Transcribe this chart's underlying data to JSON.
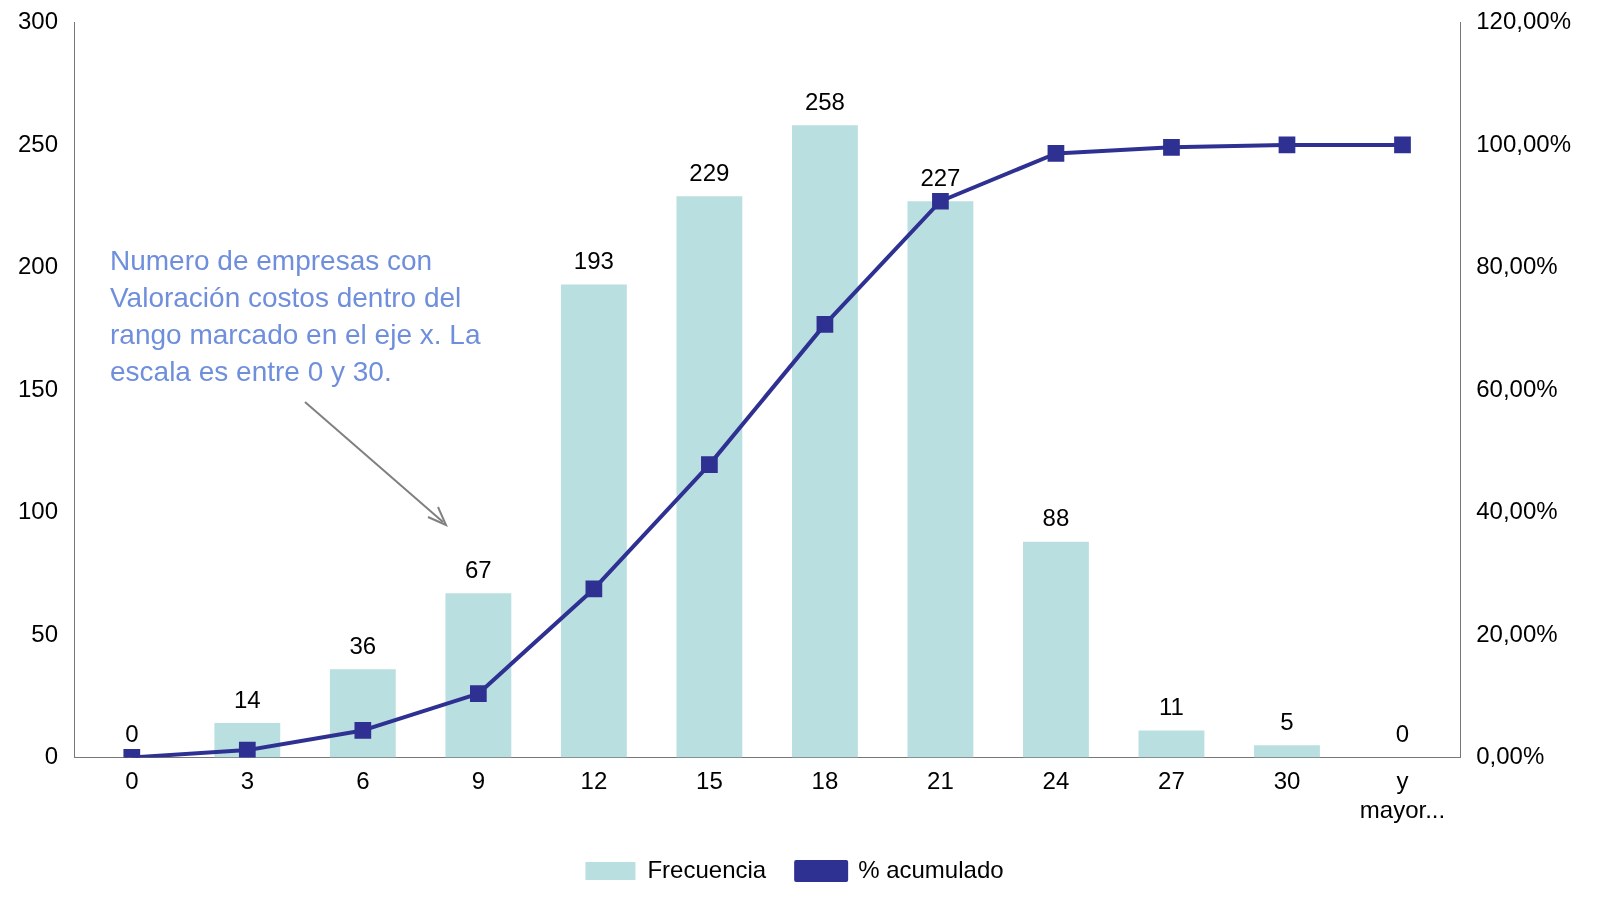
{
  "chart_data": {
    "type": "bar",
    "categories": [
      "0",
      "3",
      "6",
      "9",
      "12",
      "15",
      "18",
      "21",
      "24",
      "27",
      "30",
      "y mayor..."
    ],
    "series": [
      {
        "name": "Frecuencia",
        "color": "#b9dfe0",
        "values": [
          0,
          14,
          36,
          67,
          193,
          229,
          258,
          227,
          88,
          11,
          5,
          0
        ],
        "value_labels": [
          "0",
          "14",
          "36",
          "67",
          "193",
          "229",
          "258",
          "227",
          "88",
          "11",
          "5",
          "0"
        ]
      },
      {
        "name": "% acumulado",
        "type": "line",
        "axis": "y2",
        "color": "#2e3192",
        "marker": "square",
        "line_style": "solid",
        "values": [
          0,
          1.2,
          4.4,
          10.4,
          27.5,
          47.8,
          70.7,
          90.8,
          98.6,
          99.6,
          100,
          100
        ]
      }
    ],
    "ylim": [
      0,
      300
    ],
    "yticks": [
      0,
      50,
      100,
      150,
      200,
      250,
      300
    ],
    "y2lim": [
      0,
      120
    ],
    "y2ticks": [
      {
        "value": 0,
        "label": "0,00%"
      },
      {
        "value": 20,
        "label": "20,00%"
      },
      {
        "value": 40,
        "label": "40,00%"
      },
      {
        "value": 60,
        "label": "60,00%"
      },
      {
        "value": 80,
        "label": "80,00%"
      },
      {
        "value": 100,
        "label": "100,00%"
      },
      {
        "value": 120,
        "label": "120,00%"
      }
    ],
    "annotations": [
      "Numero de empresas con Valoración costos dentro del rango marcado en el eje x. La escala es entre 0 y 30."
    ],
    "grid": false,
    "legend": "bottom"
  }
}
